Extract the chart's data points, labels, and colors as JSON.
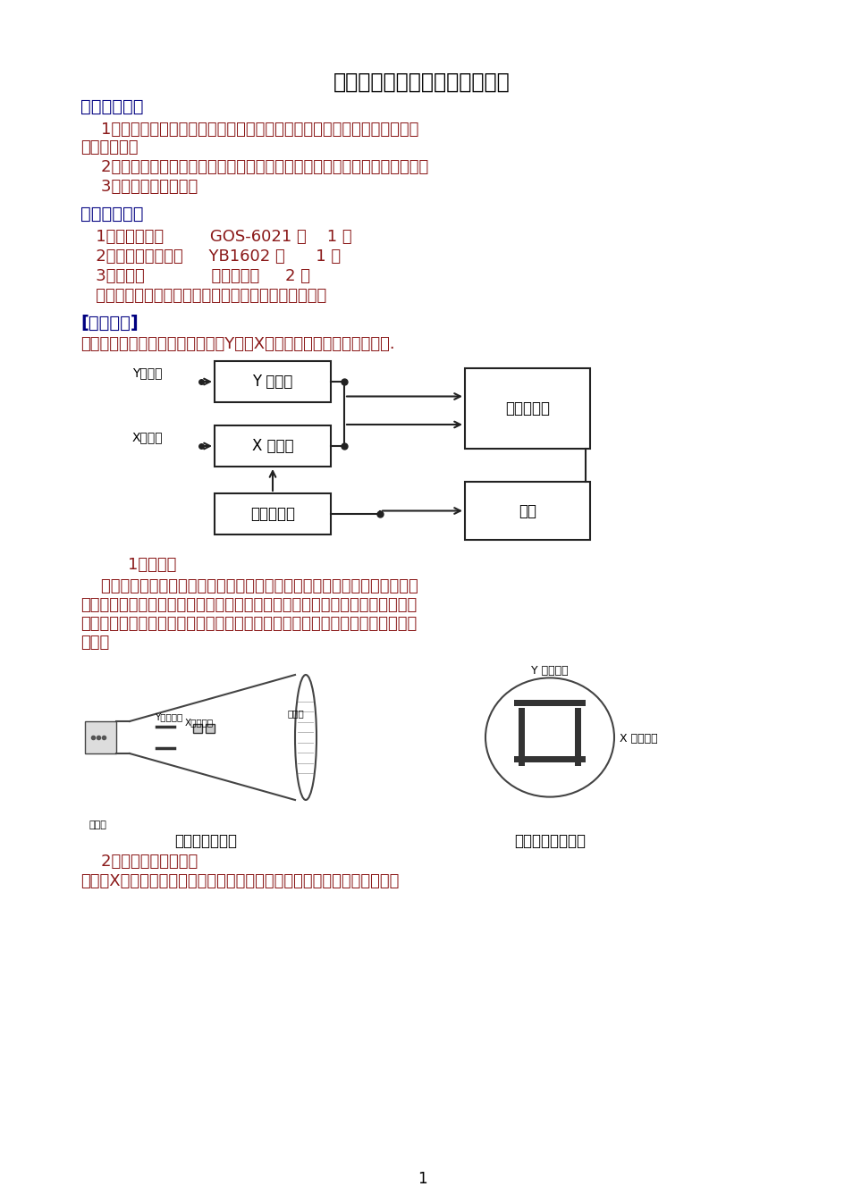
{
  "title": "《示波器的使用》实验示范报告",
  "bg_color": "#ffffff",
  "obj_header": "【实验目的】",
  "obj_line1a": "    1．了解示波器显示波形的原理，了解示波器各主要组成部分及它们之间的",
  "obj_line1b": "联系和配合；",
  "obj_line2": "    2．熟悉使用示波器的基本方法，学会用示波器测量波形的电压幅度和频率；",
  "obj_line3": "    3．观察李萨如图形。",
  "inst_header": "【实验付器】",
  "inst_line1": "   1、双踪示波器         GOS-6021 型    1 台",
  "inst_line2": "   2、函数信号发生器     YB1602 型      1 台",
  "inst_line3": "   3、连接线             示波器专用     2 根",
  "inst_line4": "   示波器和信号发生器的使用说明请熟读常用付器部分。",
  "prin_header": "[实验原理]",
  "prin_line": "示波器由示波管、扫描同步系统、Y轴和X轴放大系统和电源四部分组成.",
  "diag_y_amp": "Y 轴放大",
  "diag_x_amp": "X 轴放大",
  "diag_scan": "扫描和整步",
  "diag_crt": "电子示波管",
  "diag_power": "电源",
  "diag_y_in": "Y轴输入",
  "diag_x_in": "X轴输入",
  "sub1_header": "    1、示波管",
  "sub1_l1": "    如图所示，左端为一电子枪，电子枪加热后发出一束电子，电子经电场加速",
  "sub1_l2": "以高速打在右端的荧光屏上，屏上的荧光物发光形成一亮点。亮点在偏转板电压",
  "sub1_l3": "的作用下，位置也随之改变。在一定范围内，亮点的位移与偏转板上所加电压成",
  "sub1_l4": "正比。",
  "crt_cap1": "示波管结构简图",
  "crt_cap2": "示波管内的偏转板",
  "crt_label_gun": "电子枪",
  "crt_label_yplate": "Y轴偏转板",
  "crt_label_xplate": "X轴偏转板",
  "crt_label_screen": "荧光屏",
  "circ_label_y": "Y 轴偏转板",
  "circ_label_x": "X 轴偏转板",
  "sub2_header": "    2、扫描与同步的作用",
  "sub2_line": "如果在X轴偏转板加上波形为锯齿形的电压，在荧光屏上看到的是一条水平",
  "page_num": "1"
}
